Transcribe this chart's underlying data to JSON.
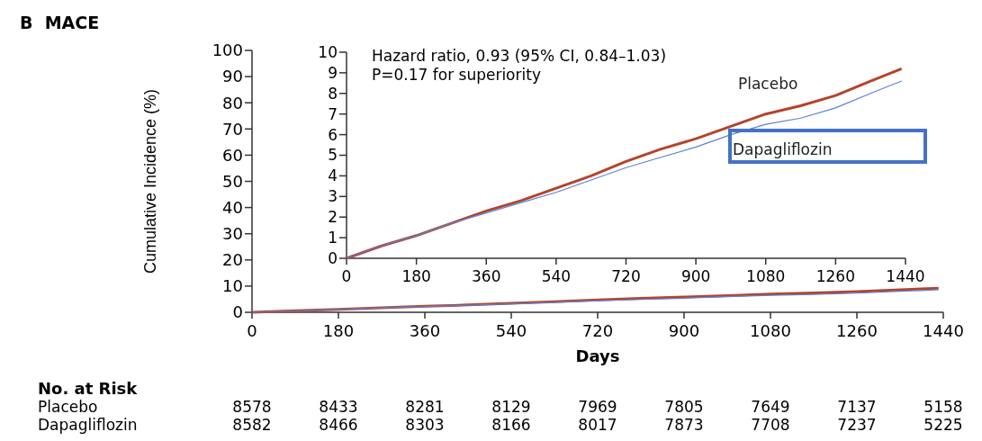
{
  "chart_data": [
    {
      "type": "line",
      "xlabel": "Days",
      "ylabel": "Cumulative Incidence (%)",
      "xlim": [
        0,
        1440
      ],
      "xticks": [
        0,
        180,
        360,
        540,
        720,
        900,
        1080,
        1260,
        1440
      ],
      "ylim": [
        0,
        100
      ],
      "yticks": [
        0,
        10,
        20,
        30,
        40,
        50,
        60,
        70,
        80,
        90,
        100
      ],
      "grid": false,
      "x": [
        0,
        90,
        180,
        270,
        360,
        450,
        540,
        630,
        720,
        810,
        900,
        990,
        1080,
        1170,
        1260,
        1350,
        1430
      ],
      "series": [
        {
          "color": "#b5432a",
          "values": [
            0,
            0.6,
            1.1,
            1.7,
            2.3,
            2.8,
            3.4,
            4.0,
            4.7,
            5.3,
            5.8,
            6.4,
            7.0,
            7.4,
            7.9,
            8.6,
            9.2
          ]
        },
        {
          "color": "#5b82d6",
          "values": [
            0,
            0.6,
            1.1,
            1.7,
            2.2,
            2.7,
            3.2,
            3.8,
            4.4,
            4.9,
            5.4,
            6.0,
            6.5,
            6.8,
            7.3,
            8.0,
            8.6
          ]
        }
      ],
      "annotations": [
        "B  MACE",
        "No. at Risk",
        "Placebo 8578 8433 8281 8129 7969 7805 7649 7137 5158",
        "Dapagliflozin 8582 8466 8303 8166 8017 7873 7708 7237 5225"
      ]
    },
    {
      "type": "line",
      "xlim": [
        0,
        1440
      ],
      "xticks": [
        0,
        180,
        360,
        540,
        720,
        900,
        1080,
        1260,
        1440
      ],
      "ylim": [
        0,
        10
      ],
      "yticks": [
        0,
        1,
        2,
        3,
        4,
        5,
        6,
        7,
        8,
        9,
        10
      ],
      "grid": false,
      "x": [
        0,
        90,
        180,
        270,
        360,
        450,
        540,
        630,
        720,
        810,
        900,
        990,
        1080,
        1170,
        1260,
        1350,
        1430
      ],
      "series": [
        {
          "name": "Placebo",
          "color": "#b5432a",
          "values": [
            0,
            0.6,
            1.1,
            1.7,
            2.3,
            2.8,
            3.4,
            4.0,
            4.7,
            5.3,
            5.8,
            6.4,
            7.0,
            7.4,
            7.9,
            8.6,
            9.2
          ]
        },
        {
          "name": "Dapagliflozin",
          "color": "#5b82d6",
          "values": [
            0,
            0.6,
            1.1,
            1.7,
            2.2,
            2.7,
            3.2,
            3.8,
            4.4,
            4.9,
            5.4,
            6.0,
            6.5,
            6.8,
            7.3,
            8.0,
            8.6
          ]
        }
      ],
      "annotations": [
        "Hazard ratio, 0.93 (95% CI, 0.84–1.03)",
        "P=0.17 for superiority"
      ]
    }
  ]
}
